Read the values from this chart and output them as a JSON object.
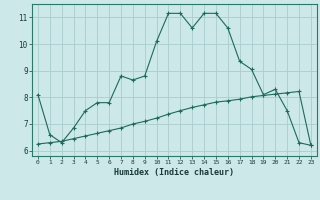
{
  "title": "",
  "xlabel": "Humidex (Indice chaleur)",
  "bg_color": "#cce8e8",
  "grid_color": "#aacccc",
  "line_color": "#1a6b5a",
  "xlim": [
    -0.5,
    23.5
  ],
  "ylim": [
    5.8,
    11.5
  ],
  "xticks": [
    0,
    1,
    2,
    3,
    4,
    5,
    6,
    7,
    8,
    9,
    10,
    11,
    12,
    13,
    14,
    15,
    16,
    17,
    18,
    19,
    20,
    21,
    22,
    23
  ],
  "yticks": [
    6,
    7,
    8,
    9,
    10,
    11
  ],
  "curve1_x": [
    0,
    1,
    2,
    3,
    4,
    5,
    6,
    7,
    8,
    9,
    10,
    11,
    12,
    13,
    14,
    15,
    16,
    17,
    18,
    19,
    20,
    21,
    22,
    23
  ],
  "curve1_y": [
    8.1,
    6.6,
    6.3,
    6.85,
    7.5,
    7.8,
    7.8,
    8.8,
    8.65,
    8.8,
    10.1,
    11.15,
    11.15,
    10.6,
    11.15,
    11.15,
    10.6,
    9.35,
    9.05,
    8.1,
    8.3,
    7.5,
    6.3,
    6.2
  ],
  "curve2_x": [
    0,
    1,
    2,
    3,
    4,
    5,
    6,
    7,
    8,
    9,
    10,
    11,
    12,
    13,
    14,
    15,
    16,
    17,
    18,
    19,
    20,
    21,
    22,
    23
  ],
  "curve2_y": [
    6.25,
    6.3,
    6.35,
    6.45,
    6.55,
    6.65,
    6.75,
    6.85,
    7.0,
    7.1,
    7.22,
    7.37,
    7.5,
    7.62,
    7.72,
    7.82,
    7.87,
    7.93,
    8.02,
    8.07,
    8.12,
    8.17,
    8.22,
    6.2
  ]
}
